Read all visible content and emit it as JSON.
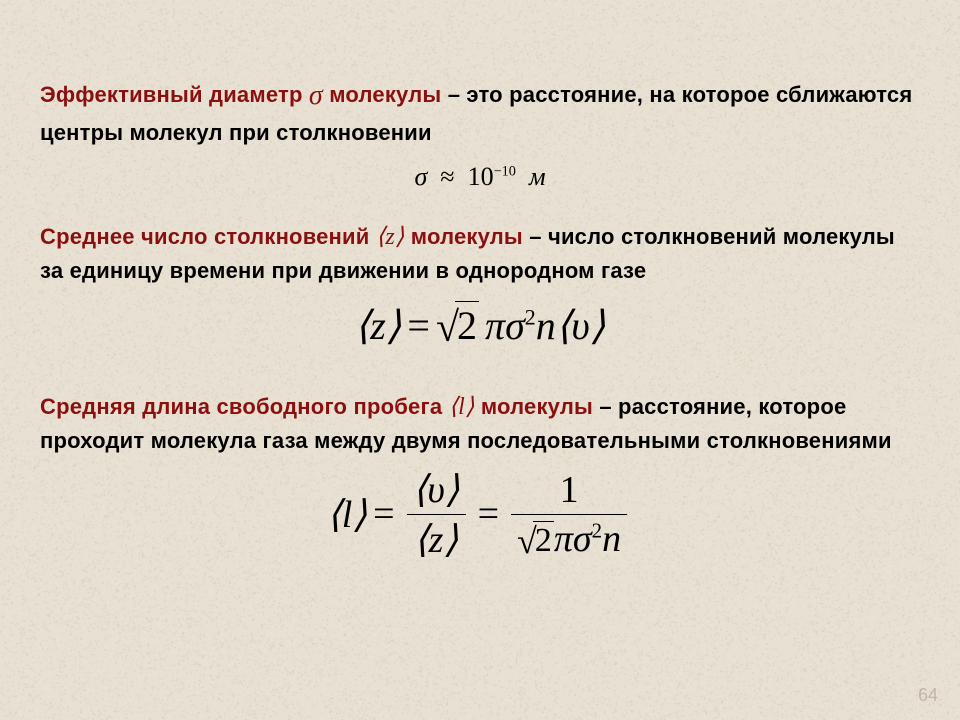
{
  "background": {
    "base_color": "#e8e1d3",
    "noise_colors": [
      "#d8d0bf",
      "#efe9dc",
      "#cfc6b2"
    ]
  },
  "text_colors": {
    "heading": "#8a1010",
    "body": "#000000",
    "pagenum": "rgba(120,110,95,0.35)"
  },
  "blocks": [
    {
      "heading_pre": "Эффективный диаметр ",
      "heading_sym": "σ",
      "heading_post": "  молекулы",
      "body": " – это расстояние, на которое сближаются центры молекул при столкновении",
      "formula": {
        "type": "approx",
        "lhs_sym": "σ",
        "rel": "≈",
        "base": "10",
        "exp": "−10",
        "unit": "м",
        "fontsize_pt": 26
      }
    },
    {
      "heading_pre": "Среднее число столкновений ",
      "heading_sym": "⟨z⟩",
      "heading_post": " молекулы",
      "body": " – число столкновений молекулы за единицу времени при движении в однородном газе",
      "formula": {
        "type": "product",
        "lhs": "⟨z⟩",
        "rel": "=",
        "sqrt_of": "2",
        "factors_html": "πσ<span class=\"sup\">2</span>n⟨υ⟩",
        "fontsize_pt": 40
      }
    },
    {
      "heading_pre": "Средняя длина свободного пробега ",
      "heading_sym": "⟨l⟩",
      "heading_post": " молекулы",
      "body": " – расстояние, которое проходит молекула газа между двумя последовательными столкновениями",
      "formula": {
        "type": "double_frac",
        "lhs": "⟨l⟩",
        "rel": "=",
        "frac1": {
          "num": "⟨υ⟩",
          "den": "⟨z⟩"
        },
        "rel2": "=",
        "frac2": {
          "num": "1",
          "den_sqrt_of": "2",
          "den_rest_html": "πσ<span class=\"sup\">2</span>n"
        },
        "fontsize_pt": 38
      }
    }
  ],
  "page_number": "64"
}
